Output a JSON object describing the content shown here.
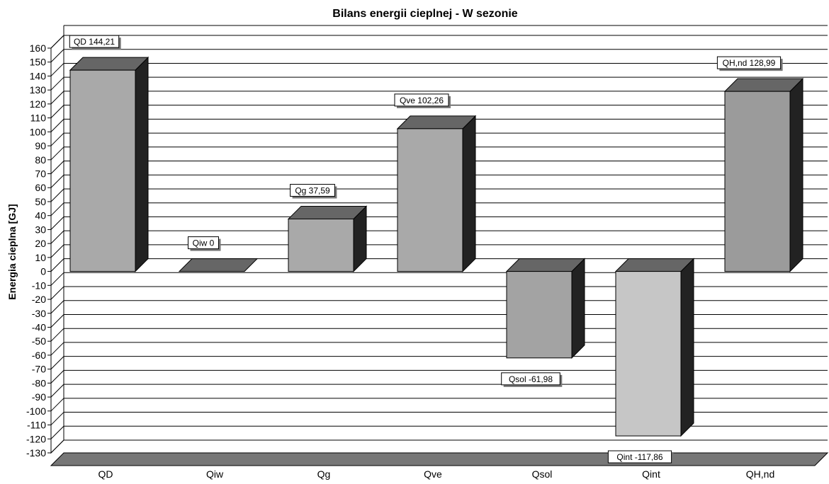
{
  "chart_data": {
    "type": "bar",
    "title": "Bilans energii cieplnej - W sezonie",
    "xlabel": "",
    "ylabel": "Energia cieplna [GJ]",
    "ylim": [
      -130,
      160
    ],
    "ytick_step": 10,
    "grid": true,
    "three_d": true,
    "categories": [
      "QD",
      "Qiw",
      "Qg",
      "Qve",
      "Qsol",
      "Qint",
      "QH,nd"
    ],
    "values": [
      144.21,
      0,
      37.59,
      102.26,
      -61.98,
      -117.86,
      128.99
    ],
    "data_labels": [
      "QD 144,21",
      "Qiw 0",
      "Qg 37,59",
      "Qve 102,26",
      "Qsol -61,98",
      "Qint -117,86",
      "QH,nd 128,99"
    ],
    "bar_colors": [
      "#a9a9a9",
      "#a9a9a9",
      "#a9a9a9",
      "#a9a9a9",
      "#a3a3a3",
      "#c6c6c6",
      "#9b9b9b"
    ],
    "colors": {
      "top": "#666666",
      "side": "#222222",
      "floor": "#777777",
      "wall": "#555555",
      "grid": "#000000"
    }
  }
}
